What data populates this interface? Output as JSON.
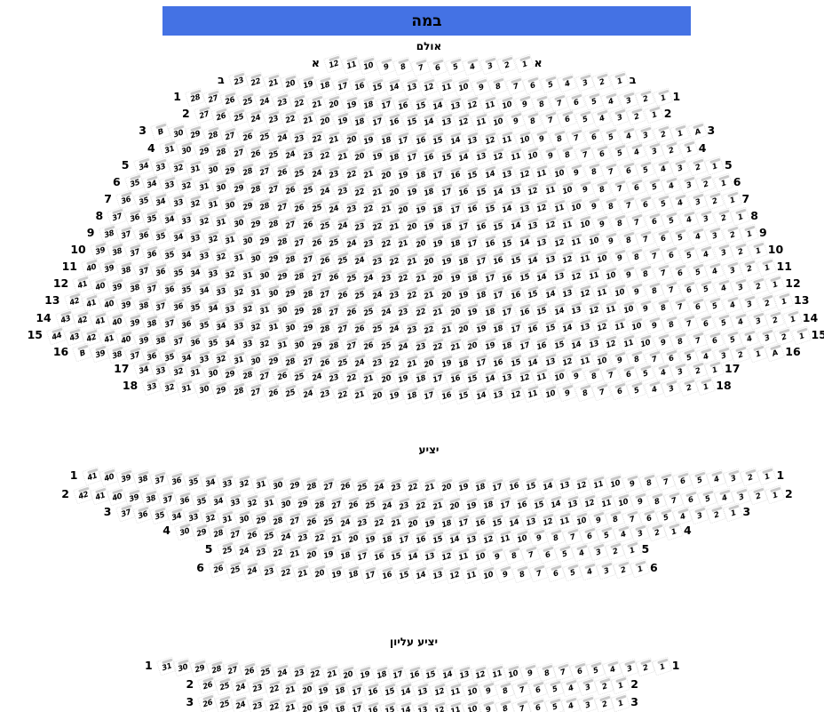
{
  "stage": {
    "label": "במה"
  },
  "colors": {
    "stage_bg": "#4472e4",
    "stage_text": "#000000",
    "seat_back": "#c8c8c8",
    "seat_number": "#000000",
    "label_text": "#000000"
  },
  "sections": [
    {
      "name": "אולם",
      "rows": [
        {
          "label": "א",
          "start": 12,
          "end": 1
        },
        {
          "label": "ב",
          "start": 23,
          "end": 1
        },
        {
          "label": "1",
          "start": 28,
          "end": 1
        },
        {
          "label": "2",
          "start": 27,
          "end": 1
        },
        {
          "label": "3",
          "start": 30,
          "end": 1,
          "left_extra": "B",
          "right_extra": "A"
        },
        {
          "label": "4",
          "start": 31,
          "end": 1
        },
        {
          "label": "5",
          "start": 34,
          "end": 1
        },
        {
          "label": "6",
          "start": 35,
          "end": 1
        },
        {
          "label": "7",
          "start": 36,
          "end": 1
        },
        {
          "label": "8",
          "start": 37,
          "end": 1
        },
        {
          "label": "9",
          "start": 38,
          "end": 1
        },
        {
          "label": "10",
          "start": 39,
          "end": 1
        },
        {
          "label": "11",
          "start": 40,
          "end": 1
        },
        {
          "label": "12",
          "start": 41,
          "end": 1
        },
        {
          "label": "13",
          "start": 42,
          "end": 1
        },
        {
          "label": "14",
          "start": 43,
          "end": 1
        },
        {
          "label": "15",
          "start": 44,
          "end": 1
        },
        {
          "label": "16",
          "start": 39,
          "end": 1,
          "left_extra": "B",
          "right_extra": "A"
        },
        {
          "label": "17",
          "start": 34,
          "end": 1
        },
        {
          "label": "18",
          "start": 33,
          "end": 1
        }
      ]
    },
    {
      "name": "יציע",
      "rows": [
        {
          "label": "1",
          "start": 41,
          "end": 1
        },
        {
          "label": "2",
          "start": 42,
          "end": 1
        },
        {
          "label": "3",
          "start": 37,
          "end": 1
        },
        {
          "label": "4",
          "start": 30,
          "end": 1
        },
        {
          "label": "5",
          "start": 25,
          "end": 1
        },
        {
          "label": "6",
          "start": 26,
          "end": 1
        }
      ]
    },
    {
      "name": "יציע עליון",
      "rows": [
        {
          "label": "1",
          "start": 31,
          "end": 1
        },
        {
          "label": "2",
          "start": 26,
          "end": 1
        },
        {
          "label": "3",
          "start": 26,
          "end": 1
        }
      ]
    }
  ]
}
